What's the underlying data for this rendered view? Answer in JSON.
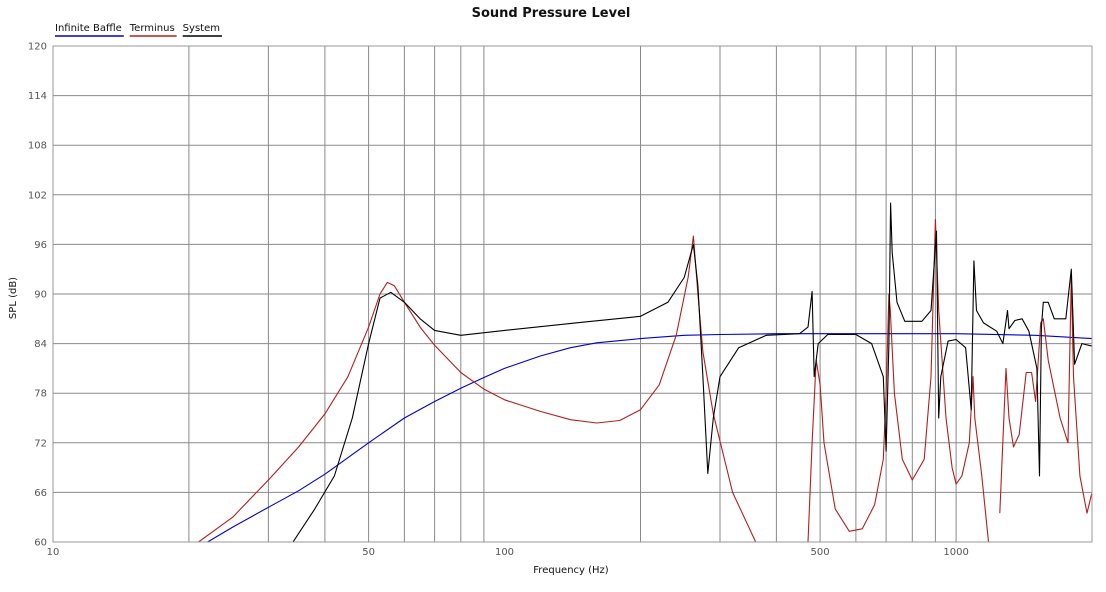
{
  "chart_data": {
    "type": "line",
    "title": "Sound Pressure Level",
    "xlabel": "Frequency (Hz)",
    "ylabel": "SPL (dB)",
    "xscale": "log",
    "xlim": [
      10,
      2000
    ],
    "ylim": [
      60,
      120
    ],
    "xticks": [
      {
        "value": 10,
        "label": "10"
      },
      {
        "value": 50,
        "label": "50"
      },
      {
        "value": 100,
        "label": "100"
      },
      {
        "value": 500,
        "label": "500"
      },
      {
        "value": 1000,
        "label": "1000"
      }
    ],
    "xgrid": [
      20,
      30,
      40,
      50,
      60,
      70,
      80,
      90,
      200,
      300,
      400,
      500,
      600,
      700,
      800,
      900,
      1000
    ],
    "yticks": [
      60,
      66,
      72,
      78,
      84,
      90,
      96,
      102,
      108,
      114,
      120
    ],
    "grid": true,
    "legend_position": "top-left",
    "series": [
      {
        "name": "Infinite Baffle",
        "color": "#0000cc",
        "points": [
          [
            22,
            60
          ],
          [
            25,
            61.8
          ],
          [
            30,
            64.2
          ],
          [
            35,
            66.2
          ],
          [
            40,
            68.2
          ],
          [
            45,
            70.2
          ],
          [
            50,
            72
          ],
          [
            60,
            75
          ],
          [
            70,
            77
          ],
          [
            80,
            78.6
          ],
          [
            90,
            79.9
          ],
          [
            100,
            81
          ],
          [
            120,
            82.5
          ],
          [
            140,
            83.5
          ],
          [
            160,
            84.1
          ],
          [
            200,
            84.6
          ],
          [
            250,
            85
          ],
          [
            300,
            85.1
          ],
          [
            400,
            85.2
          ],
          [
            500,
            85.2
          ],
          [
            700,
            85.2
          ],
          [
            1000,
            85.2
          ],
          [
            1500,
            85
          ],
          [
            2000,
            84.6
          ]
        ]
      },
      {
        "name": "Terminus",
        "color": "#b02020",
        "points": [
          [
            21,
            60
          ],
          [
            25,
            63
          ],
          [
            30,
            67.5
          ],
          [
            35,
            71.5
          ],
          [
            40,
            75.5
          ],
          [
            45,
            80
          ],
          [
            50,
            86
          ],
          [
            53,
            90
          ],
          [
            55,
            91.4
          ],
          [
            57,
            91
          ],
          [
            60,
            89
          ],
          [
            65,
            86
          ],
          [
            70,
            83.8
          ],
          [
            80,
            80.5
          ],
          [
            90,
            78.5
          ],
          [
            100,
            77.2
          ],
          [
            120,
            75.8
          ],
          [
            140,
            74.8
          ],
          [
            160,
            74.4
          ],
          [
            180,
            74.7
          ],
          [
            200,
            76
          ],
          [
            220,
            79
          ],
          [
            240,
            85
          ],
          [
            255,
            92
          ],
          [
            262,
            97
          ],
          [
            268,
            90
          ],
          [
            275,
            83
          ],
          [
            290,
            75.5
          ],
          [
            320,
            66
          ],
          [
            360,
            60
          ],
          [
            null,
            null
          ],
          [
            470,
            60
          ],
          [
            480,
            72
          ],
          [
            490,
            82
          ],
          [
            500,
            79
          ],
          [
            510,
            72
          ],
          [
            540,
            64
          ],
          [
            580,
            61.3
          ],
          [
            620,
            61.6
          ],
          [
            660,
            64.5
          ],
          [
            690,
            70
          ],
          [
            700,
            78
          ],
          [
            710,
            90
          ],
          [
            715,
            88
          ],
          [
            730,
            78
          ],
          [
            760,
            70
          ],
          [
            800,
            67.5
          ],
          [
            850,
            70
          ],
          [
            880,
            80
          ],
          [
            900,
            99
          ],
          [
            915,
            88
          ],
          [
            950,
            75
          ],
          [
            980,
            69
          ],
          [
            1000,
            67
          ],
          [
            1030,
            68
          ],
          [
            1070,
            72
          ],
          [
            1090,
            80
          ],
          [
            1100,
            75
          ],
          [
            1140,
            68
          ],
          [
            1180,
            60
          ],
          [
            null,
            null
          ],
          [
            1250,
            63.5
          ],
          [
            1290,
            81
          ],
          [
            1310,
            75
          ],
          [
            1340,
            71.5
          ],
          [
            1380,
            73
          ],
          [
            1430,
            80.5
          ],
          [
            1470,
            80.5
          ],
          [
            1500,
            77
          ],
          [
            1540,
            86.5
          ],
          [
            1560,
            87
          ],
          [
            1600,
            82
          ],
          [
            1700,
            75
          ],
          [
            1770,
            72
          ],
          [
            1800,
            92
          ],
          [
            1820,
            80
          ],
          [
            1880,
            68
          ],
          [
            1950,
            63.5
          ],
          [
            2000,
            66
          ]
        ]
      },
      {
        "name": "System",
        "color": "#000000",
        "points": [
          [
            34,
            60
          ],
          [
            38,
            64
          ],
          [
            42,
            68
          ],
          [
            46,
            75
          ],
          [
            50,
            84
          ],
          [
            53,
            89.5
          ],
          [
            56,
            90.2
          ],
          [
            60,
            89
          ],
          [
            65,
            87
          ],
          [
            70,
            85.6
          ],
          [
            80,
            85
          ],
          [
            100,
            85.6
          ],
          [
            150,
            86.6
          ],
          [
            200,
            87.3
          ],
          [
            230,
            89
          ],
          [
            250,
            92
          ],
          [
            262,
            96
          ],
          [
            268,
            91
          ],
          [
            275,
            80
          ],
          [
            282,
            68.3
          ],
          [
            290,
            75
          ],
          [
            300,
            80
          ],
          [
            330,
            83.5
          ],
          [
            380,
            85
          ],
          [
            450,
            85.2
          ],
          [
            470,
            86
          ],
          [
            480,
            90.3
          ],
          [
            485,
            80
          ],
          [
            495,
            84
          ],
          [
            520,
            85.1
          ],
          [
            600,
            85.1
          ],
          [
            650,
            84
          ],
          [
            690,
            80
          ],
          [
            700,
            71
          ],
          [
            710,
            84
          ],
          [
            716,
            101
          ],
          [
            722,
            95
          ],
          [
            740,
            89
          ],
          [
            770,
            86.7
          ],
          [
            840,
            86.7
          ],
          [
            880,
            88
          ],
          [
            905,
            97.6
          ],
          [
            915,
            75
          ],
          [
            925,
            80
          ],
          [
            960,
            84.3
          ],
          [
            1000,
            84.5
          ],
          [
            1050,
            83.5
          ],
          [
            1080,
            76
          ],
          [
            1095,
            94
          ],
          [
            1110,
            88
          ],
          [
            1150,
            86.5
          ],
          [
            1230,
            85.5
          ],
          [
            1270,
            84
          ],
          [
            1300,
            88
          ],
          [
            1310,
            85.8
          ],
          [
            1350,
            86.8
          ],
          [
            1400,
            87
          ],
          [
            1450,
            85.5
          ],
          [
            1510,
            81
          ],
          [
            1530,
            68
          ],
          [
            1545,
            86
          ],
          [
            1560,
            89
          ],
          [
            1600,
            89
          ],
          [
            1650,
            87
          ],
          [
            1750,
            87
          ],
          [
            1800,
            93
          ],
          [
            1830,
            81.5
          ],
          [
            1900,
            84
          ],
          [
            2000,
            83.7
          ]
        ]
      }
    ]
  }
}
